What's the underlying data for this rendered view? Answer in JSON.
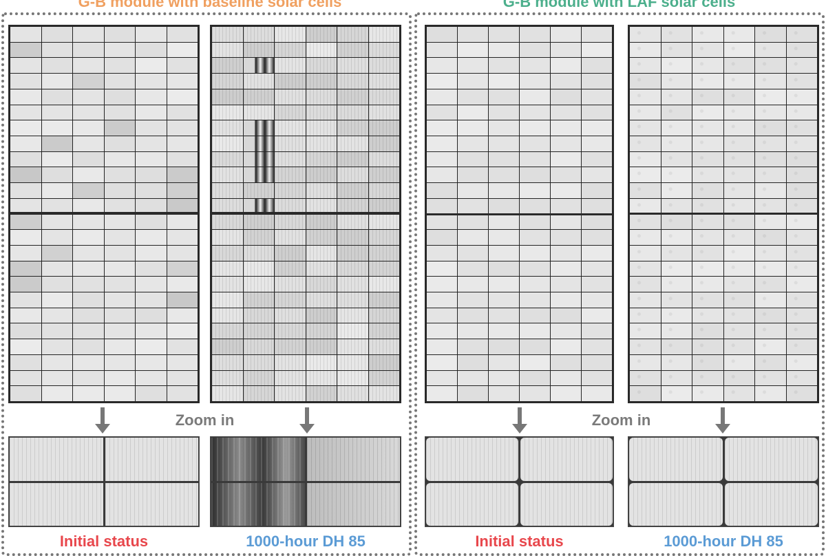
{
  "panels": [
    {
      "title": "G-B module with baseline solar cells",
      "title_color": "#F0A060",
      "zoom_label": "Zoom in",
      "initial_label": "Initial status",
      "initial_color": "#E8474C",
      "aged_label": "1000-hour DH 85",
      "aged_color": "#5B9BD5"
    },
    {
      "title": "G-B module with LAF solar cells",
      "title_color": "#4CAF8C",
      "zoom_label": "Zoom in",
      "initial_label": "Initial status",
      "initial_color": "#E8474C",
      "aged_label": "1000-hour DH 85",
      "aged_color": "#5B9BD5"
    }
  ]
}
